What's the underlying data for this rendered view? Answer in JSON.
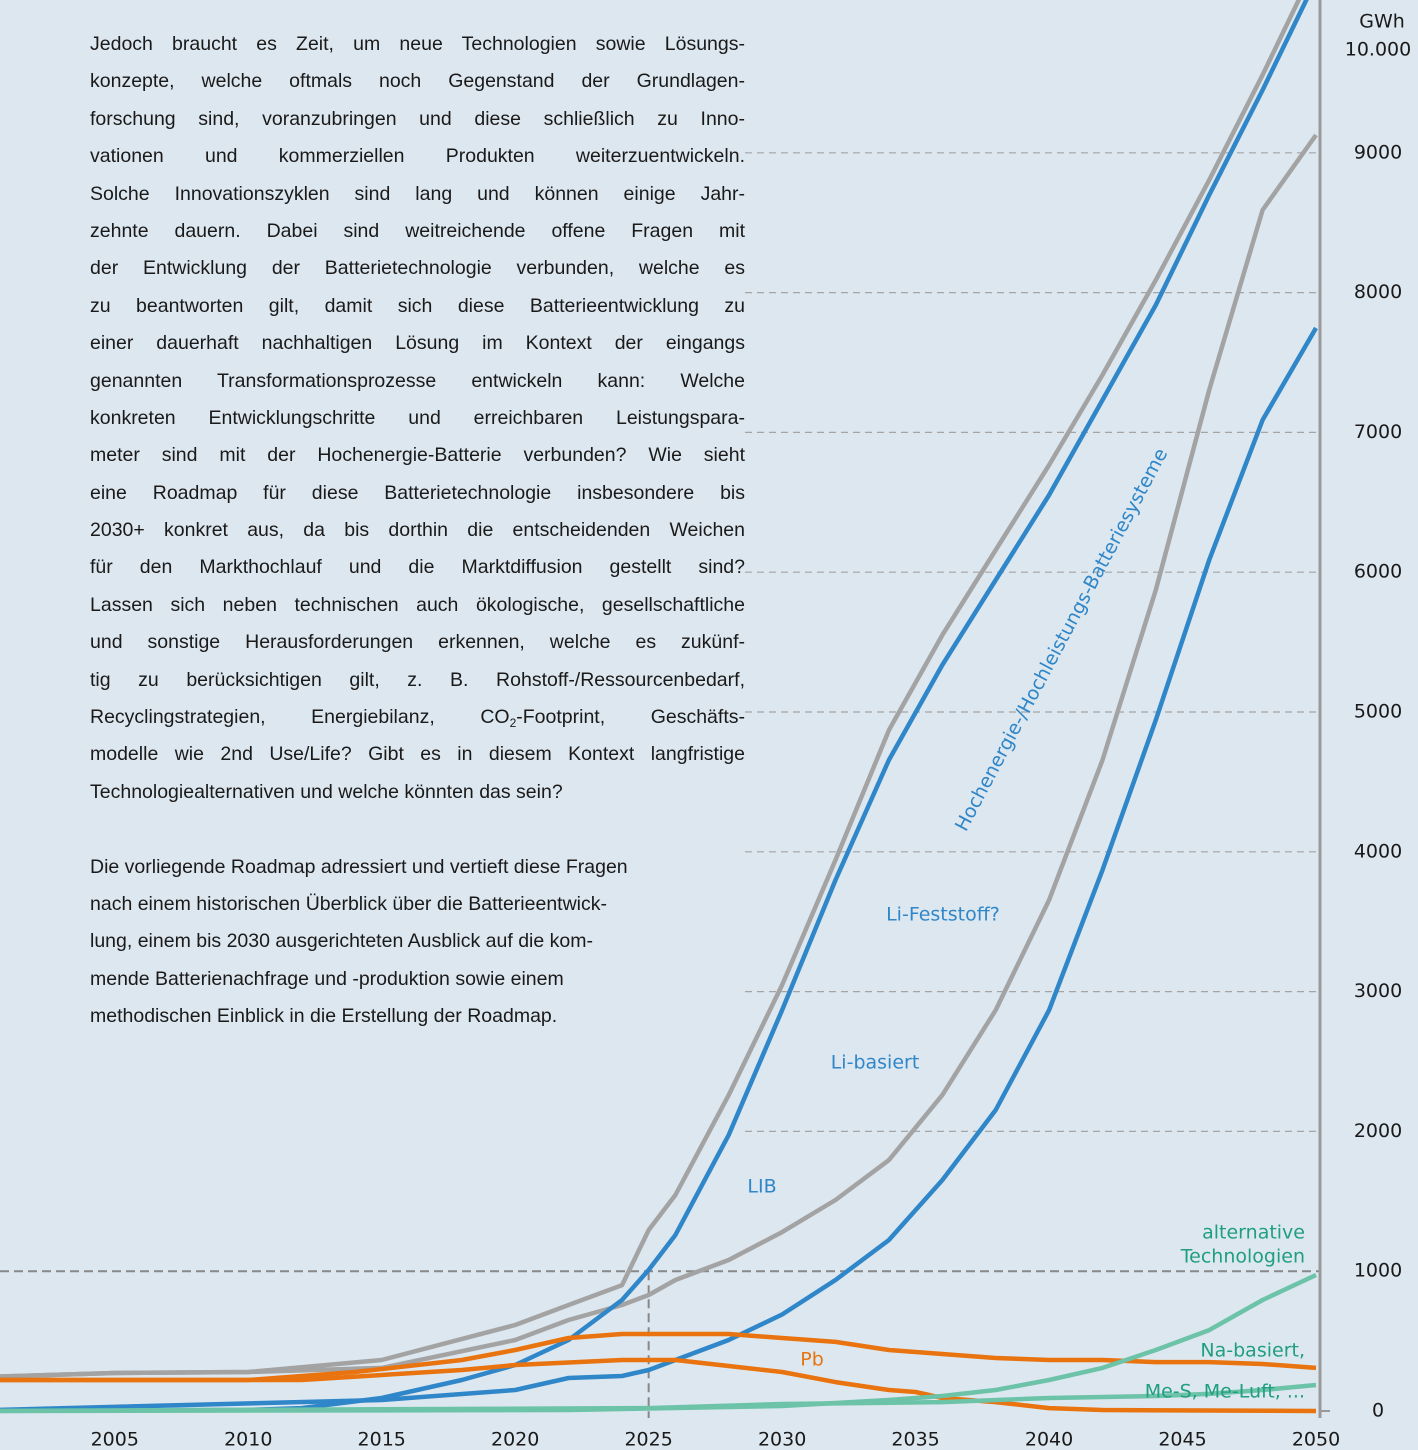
{
  "text": {
    "paragraphs": [
      [
        "Jedoch braucht es Zeit, um neue Technologien sowie Lösungs-",
        "konzepte, welche oftmals noch Gegenstand der Grundlagen-",
        "forschung sind, voranzubringen und diese schließlich zu Inno-",
        "vationen und kommerziellen Produkten weiterzuentwickeln.",
        "Solche Innovationszyklen sind lang und können einige Jahr-",
        "zehnte dauern. Dabei sind weitreichende offene Fragen mit",
        "der Entwicklung der Batterietechnologie verbunden, welche es",
        "zu beantworten gilt, damit sich diese Batterieentwicklung zu",
        "einer dauerhaft nachhaltigen Lösung im Kontext der eingangs",
        "genannten Transformationsprozesse entwickeln kann: Welche",
        "konkreten Entwicklungschritte und erreichbaren Leistungspara-",
        "meter sind mit der Hochenergie-Batterie verbunden? Wie sieht",
        "eine Roadmap für diese Batterietechnologie insbesondere bis",
        "2030+ konkret aus, da bis dorthin die entscheidenden Weichen",
        "für den Markthochlauf und die Marktdiffusion gestellt sind?",
        "Lassen sich neben technischen auch ökologische, gesellschaftliche",
        "und sonstige Herausforderungen erkennen, welche es zukünf-",
        "tig zu berücksichtigen gilt, z. B. Rohstoff-/Ressourcenbedarf,",
        [
          "Recyclingstrategien, Energiebilanz, CO",
          "2",
          "-Footprint, Geschäfts-"
        ],
        "modelle wie 2nd Use/Life? Gibt es in diesem Kontext langfristige",
        "Technologiealternativen und welche könnten das sein?"
      ],
      [
        "Die vorliegende Roadmap adressiert und vertieft diese Fragen",
        "nach einem historischen Überblick über die Batterieentwick-",
        "lung, einem bis 2030 ausgerichteten Ausblick auf die kom-",
        "mende Batterienachfrage und -produktion sowie einem",
        "methodischen Einblick in die Erstellung der Roadmap."
      ]
    ]
  },
  "chart_data": {
    "type": "line",
    "y_unit": "GWh",
    "xlim": [
      2000.7,
      2050
    ],
    "xticks": [
      2005,
      2010,
      2015,
      2020,
      2025,
      2030,
      2035,
      2040,
      2045,
      2050
    ],
    "ylim": [
      0,
      10000
    ],
    "yticks": [
      0,
      1000,
      2000,
      3000,
      4000,
      5000,
      6000,
      7000,
      8000,
      9000,
      {
        "value": 10000,
        "label": "10.000"
      }
    ],
    "grid": true,
    "highlight": {
      "x": 2025,
      "y": 1000
    },
    "series": [
      {
        "color": "#a3a3a3",
        "x": [
          2000,
          2005,
          2010,
          2015,
          2020,
          2022,
          2024,
          2025,
          2026,
          2028,
          2030,
          2032,
          2034,
          2036,
          2038,
          2040,
          2042,
          2044,
          2046,
          2048,
          2050
        ],
        "values": [
          243,
          272,
          279,
          365,
          615,
          758,
          900,
          1295,
          1545,
          2260,
          3047,
          3941,
          4870,
          5550,
          6159,
          6767,
          7411,
          8090,
          8805,
          9557,
          10350
        ]
      },
      {
        "color": "#a3a3a3",
        "x": [
          2000,
          2005,
          2010,
          2015,
          2020,
          2022,
          2024,
          2025,
          2026,
          2028,
          2030,
          2032,
          2034,
          2036,
          2038,
          2040,
          2042,
          2044,
          2046,
          2048,
          2050
        ],
        "values": [
          243,
          272,
          279,
          308,
          508,
          651,
          758,
          830,
          937,
          1080,
          1280,
          1509,
          1795,
          2260,
          2868,
          3655,
          4657,
          5873,
          7303,
          8591,
          9127
        ]
      },
      {
        "color": "#2f86c8",
        "x": [
          2000,
          2010,
          2012,
          2015,
          2018,
          2020,
          2022,
          2024,
          2025,
          2026,
          2028,
          2030,
          2032,
          2034,
          2036,
          2038,
          2040,
          2042,
          2044,
          2046,
          2048,
          2050
        ],
        "values": [
          5,
          7,
          21,
          93,
          222,
          329,
          508,
          794,
          1009,
          1259,
          1974,
          2868,
          3798,
          4657,
          5336,
          5944,
          6552,
          7232,
          7911,
          8698,
          9449,
          10236
        ]
      },
      {
        "color": "#2f86c8",
        "x": [
          2000,
          2015,
          2020,
          2022,
          2024,
          2025,
          2026,
          2028,
          2030,
          2032,
          2034,
          2036,
          2038,
          2040,
          2042,
          2044,
          2046,
          2048,
          2050
        ],
        "values": [
          5,
          79,
          150,
          236,
          250,
          293,
          365,
          508,
          690,
          937,
          1223,
          1652,
          2153,
          2868,
          3870,
          4943,
          6087,
          7089,
          7747
        ]
      },
      {
        "color": "#e8730f",
        "x": [
          2000,
          2010,
          2014,
          2018,
          2020,
          2022,
          2024,
          2028,
          2030,
          2032,
          2034,
          2036,
          2038,
          2040,
          2042,
          2044,
          2046,
          2048,
          2050
        ],
        "values": [
          222,
          222,
          279,
          365,
          436,
          522,
          551,
          551,
          522,
          494,
          436,
          408,
          379,
          365,
          365,
          350,
          350,
          336,
          308
        ]
      },
      {
        "color": "#e8730f",
        "x": [
          2000,
          2012,
          2018,
          2020,
          2024,
          2026,
          2028,
          2030,
          2032,
          2034,
          2035,
          2036,
          2038,
          2040,
          2042,
          2050
        ],
        "values": [
          222,
          222,
          293,
          329,
          365,
          365,
          322,
          279,
          207,
          150,
          136,
          93,
          64,
          21,
          7,
          0
        ]
      },
      {
        "color": "#6cc3a8",
        "x": [
          2000,
          2022,
          2030,
          2034,
          2036,
          2038,
          2040,
          2042,
          2044,
          2046,
          2048,
          2050
        ],
        "values": [
          0,
          7,
          36,
          79,
          107,
          150,
          222,
          308,
          436,
          579,
          794,
          973
        ]
      },
      {
        "color": "#6cc3a8",
        "x": [
          2000,
          2025,
          2030,
          2036,
          2040,
          2044,
          2046,
          2048,
          2050
        ],
        "values": [
          0,
          21,
          50,
          64,
          93,
          107,
          122,
          150,
          186
        ]
      }
    ],
    "annotations": [
      {
        "text": "Hochenergie-/Hochleistungs-Batteriesysteme",
        "color": "#2f86c8"
      },
      {
        "text": "Li-Feststoff?",
        "color": "#2f86c8"
      },
      {
        "text": "Li-basiert",
        "color": "#2f86c8"
      },
      {
        "text": "LIB",
        "color": "#2f86c8"
      },
      {
        "text": "Pb",
        "color": "#e8730f"
      },
      {
        "text": "alternative",
        "color": "#1f9e80"
      },
      {
        "text": "Technologien",
        "color": "#1f9e80"
      },
      {
        "text": "Na-basiert,",
        "color": "#1f9e80"
      },
      {
        "text": "Me-S, Me-Luft, ...",
        "color": "#1f9e80"
      }
    ]
  }
}
